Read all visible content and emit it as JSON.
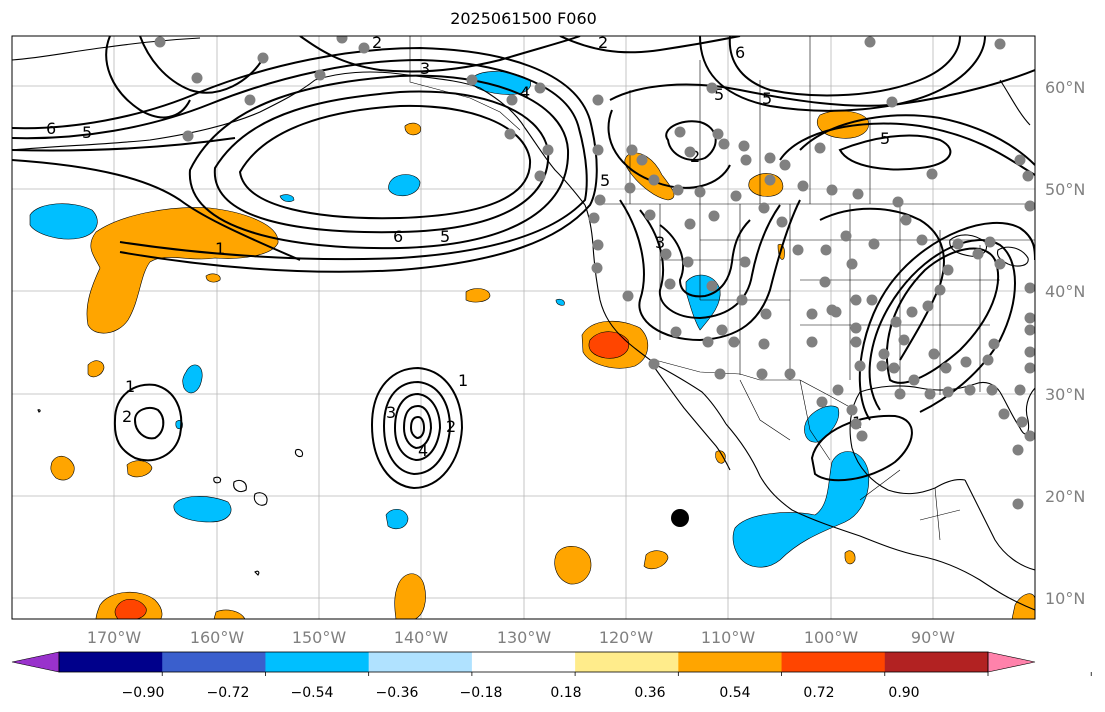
{
  "title": "2025061500 F060",
  "map": {
    "projection": "cylindrical",
    "lon_range": [
      -180,
      -80
    ],
    "lat_range": [
      8,
      65
    ],
    "gridlines": true,
    "coastlines": true,
    "borders": true,
    "lon_ticks": [
      "170°W",
      "160°W",
      "150°W",
      "140°W",
      "130°W",
      "120°W",
      "110°W",
      "100°W",
      "90°W"
    ],
    "lat_ticks": [
      "10°N",
      "20°N",
      "30°N",
      "40°N",
      "50°N",
      "60°N"
    ],
    "tick_color": "#808080"
  },
  "contour_labels": [
    "2",
    "2",
    "3",
    "4",
    "5",
    "6",
    "6",
    "5",
    "1",
    "6",
    "5",
    "5",
    "2",
    "5",
    "5",
    "3",
    "1",
    "2",
    "1",
    "3",
    "2",
    "4",
    "1"
  ],
  "station_marker_color": "#808080",
  "highlight_marker_color": "#000000",
  "colorbar": {
    "colors": [
      "#9932cc",
      "#00008b",
      "#3a5fcd",
      "#00bfff",
      "#b0e2ff",
      "#ffffff",
      "#ffec8b",
      "#ffa500",
      "#ff4500",
      "#b22222",
      "#ff82ab"
    ],
    "tick_labels": [
      "−0.90",
      "−0.72",
      "−0.54",
      "−0.36",
      "−0.18",
      "0.18",
      "0.36",
      "0.54",
      "0.72",
      "0.90"
    ],
    "extend": "both"
  }
}
